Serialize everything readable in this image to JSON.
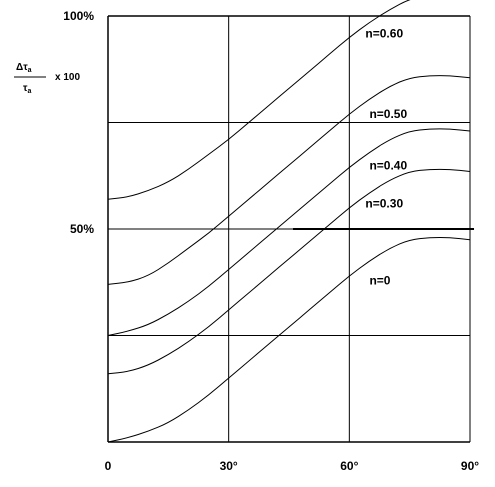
{
  "chart_data": {
    "type": "line",
    "title": "",
    "xlabel": "",
    "ylabel": {
      "numerator": "Δτ",
      "denominator": "τ",
      "subscript": "a",
      "multiplier": "x 100"
    },
    "xlim": [
      0,
      90
    ],
    "ylim": [
      0,
      100
    ],
    "x_ticks": [
      {
        "value": 0,
        "label": "0"
      },
      {
        "value": 30,
        "label": "30°"
      },
      {
        "value": 60,
        "label": "60°"
      },
      {
        "value": 90,
        "label": "90°"
      }
    ],
    "y_ticks": [
      {
        "value": 50,
        "label": "50%"
      },
      {
        "value": 100,
        "label": "100%"
      }
    ],
    "gridlines_x": [
      30,
      60,
      90
    ],
    "gridlines_y": [
      25,
      50,
      75,
      100
    ],
    "series": [
      {
        "name": "n=0.60",
        "x": [
          0,
          5,
          10,
          15,
          20,
          25,
          30,
          35,
          40,
          45,
          50,
          55,
          60,
          65,
          70,
          75,
          80,
          85,
          90
        ],
        "y": [
          57,
          57.5,
          59,
          61,
          64,
          67.5,
          71,
          75,
          79,
          83,
          87,
          91,
          95,
          98.5,
          101.5,
          104,
          105,
          105,
          104.5
        ]
      },
      {
        "name": "n=0.50",
        "x": [
          0,
          5,
          10,
          15,
          20,
          25,
          30,
          35,
          40,
          45,
          50,
          55,
          60,
          65,
          70,
          75,
          80,
          85,
          90
        ],
        "y": [
          37,
          37.5,
          39,
          42,
          45.5,
          49,
          53,
          57,
          61,
          65,
          69,
          73,
          77,
          80.5,
          83.5,
          85.5,
          86,
          86,
          85.5
        ]
      },
      {
        "name": "n=0.40",
        "x": [
          0,
          5,
          10,
          15,
          20,
          25,
          30,
          35,
          40,
          45,
          50,
          55,
          60,
          65,
          70,
          75,
          80,
          85,
          90
        ],
        "y": [
          25,
          26,
          27.5,
          30,
          33,
          36.5,
          40.5,
          44.5,
          48.5,
          52.5,
          56.5,
          60.5,
          64.5,
          68,
          71,
          73,
          73.5,
          73.5,
          73
        ]
      },
      {
        "name": "n=0.30",
        "x": [
          0,
          5,
          10,
          15,
          20,
          25,
          30,
          35,
          40,
          45,
          50,
          55,
          60,
          65,
          70,
          75,
          80,
          85,
          90
        ],
        "y": [
          16,
          16.5,
          18,
          20.5,
          23.5,
          27,
          31,
          35,
          39,
          43,
          47,
          51,
          55,
          58.5,
          61.5,
          63.5,
          64,
          64,
          63.5
        ]
      },
      {
        "name": "n=0",
        "x": [
          0,
          5,
          10,
          15,
          20,
          25,
          30,
          35,
          40,
          45,
          50,
          55,
          60,
          65,
          70,
          75,
          80,
          85,
          90
        ],
        "y": [
          0,
          1,
          2.5,
          4.5,
          7.5,
          11,
          15,
          19,
          23,
          27,
          31,
          35,
          39,
          42.5,
          45.5,
          47.5,
          48,
          48,
          47.5
        ]
      }
    ],
    "reference_line": {
      "y": 50,
      "x_start": 46,
      "x_end": 91
    },
    "series_label_positions_data": [
      {
        "name": "n=0.60",
        "x": 64,
        "y": 95
      },
      {
        "name": "n=0.50",
        "x": 65,
        "y": 76
      },
      {
        "name": "n=0.40",
        "x": 65,
        "y": 64
      },
      {
        "name": "n=0.30",
        "x": 64,
        "y": 55
      },
      {
        "name": "n=0",
        "x": 65,
        "y": 37
      }
    ],
    "colors": {
      "line": "#000000",
      "background": "#ffffff",
      "grid": "#000000"
    },
    "grid": true,
    "legend": "inline labels"
  }
}
